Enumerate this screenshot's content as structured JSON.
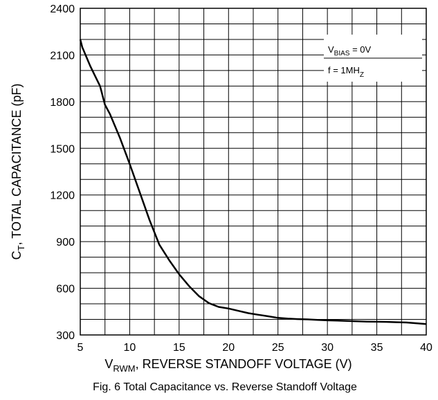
{
  "chart_data": {
    "type": "line",
    "caption": "Fig. 6 Total Capacitance vs. Reverse Standoff Voltage",
    "xlabel": {
      "main": "V",
      "sub": "RWM",
      "rest": ", REVERSE STANDOFF VOLTAGE  (V)"
    },
    "ylabel": {
      "main": "C",
      "sub": "T",
      "rest": ", TOTAL CAPACITANCE (pF)"
    },
    "xlim": [
      5,
      40
    ],
    "ylim": [
      300,
      2400
    ],
    "x_ticks": [
      "5",
      "10",
      "15",
      "20",
      "25",
      "30",
      "35",
      "40"
    ],
    "y_ticks": [
      "300",
      "600",
      "900",
      "1200",
      "1500",
      "1800",
      "2100",
      "2400"
    ],
    "grid": true,
    "annotations": [
      {
        "main": "V",
        "sub": "BIAS",
        "rest": "  = 0V"
      },
      {
        "main": "f = 1MH",
        "sub": "Z",
        "rest": ""
      }
    ],
    "series": [
      {
        "x": [
          5,
          5.2,
          6,
          7,
          7.5,
          8,
          9,
          10,
          11,
          12,
          13,
          14,
          15,
          16,
          17,
          18,
          19,
          20,
          21,
          22,
          23,
          24,
          25,
          26,
          27,
          28,
          29,
          30,
          31,
          32,
          33,
          34,
          35,
          36,
          37,
          38,
          39,
          40
        ],
        "y": [
          2200,
          2150,
          2030,
          1900,
          1780,
          1720,
          1570,
          1400,
          1220,
          1040,
          880,
          780,
          690,
          615,
          550,
          505,
          480,
          470,
          455,
          440,
          430,
          420,
          410,
          405,
          402,
          400,
          397,
          394,
          392,
          390,
          388,
          386,
          385,
          384,
          382,
          380,
          375,
          370
        ]
      }
    ]
  }
}
